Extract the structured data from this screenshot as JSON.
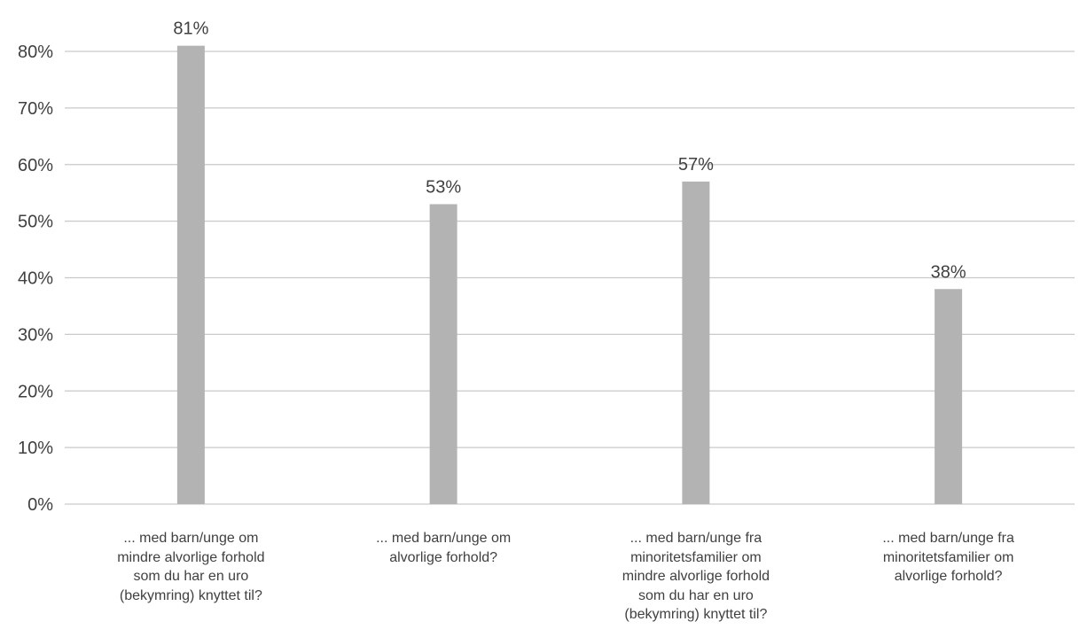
{
  "chart_data": {
    "type": "bar",
    "title": "",
    "xlabel": "",
    "ylabel": "",
    "categories": [
      "... med barn/unge om\nmindre alvorlige forhold\nsom du har en uro\n(bekymring) knyttet til?",
      "... med barn/unge om\nalvorlige forhold?",
      "... med barn/unge fra\nminoritetsfamilier om\nmindre alvorlige forhold\nsom du har en uro\n(bekymring) knyttet til?",
      "... med barn/unge fra\nminoritetsfamilier om\nalvorlige forhold?"
    ],
    "values": [
      81,
      53,
      57,
      38
    ],
    "data_labels": [
      "81%",
      "53%",
      "57%",
      "38%"
    ],
    "ylim": [
      0,
      80
    ],
    "yticks": [
      0,
      10,
      20,
      30,
      40,
      50,
      60,
      70,
      80
    ],
    "ytick_labels": [
      "0%",
      "10%",
      "20%",
      "30%",
      "40%",
      "50%",
      "60%",
      "70%",
      "80%"
    ],
    "grid": true,
    "legend": "none",
    "colors": {
      "bar": "#b3b3b3",
      "gridline": "#c9c9c9",
      "text": "#404040"
    }
  }
}
